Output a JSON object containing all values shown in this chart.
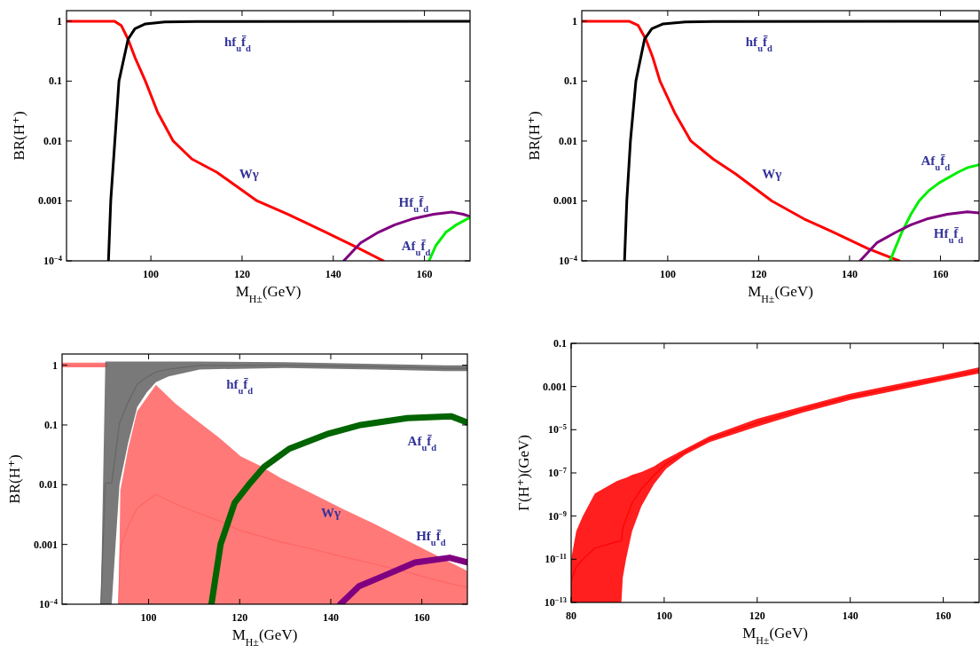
{
  "chart_data": [
    {
      "type": "line",
      "xlabel": "M$_{H±}$(GeV)",
      "ylabel": "BR(H⁺)",
      "log": true,
      "xlim": [
        81.5,
        170
      ],
      "ylim": [
        0.0001,
        1.5
      ],
      "xticks": [
        100,
        120,
        140,
        160
      ],
      "yticks": [
        {
          "value": 0.0001,
          "label": "10$^{−4}$"
        },
        0.001,
        0.01,
        0.1,
        1
      ],
      "series": [
        {
          "name": "Wγ",
          "color": "#ff0000",
          "x": [
            81.5,
            88,
            92,
            93.5,
            95,
            96.5,
            98.8,
            101.5,
            104.9,
            109,
            114.5,
            123.3,
            130,
            138.4,
            145,
            151
          ],
          "values": [
            1,
            1,
            1,
            0.85,
            0.5,
            0.25,
            0.1,
            0.03,
            0.01,
            0.005,
            0.003,
            0.001,
            0.0006,
            0.0003,
            0.00017,
            0.0001
          ]
        },
        {
          "name": "hf$_{u}$f̄$_{d}$",
          "color": "#000000",
          "x": [
            90.7,
            91.2,
            92.1,
            93,
            95,
            96.5,
            98.8,
            103,
            110,
            170
          ],
          "values": [
            0.0001,
            0.001,
            0.01,
            0.1,
            0.5,
            0.75,
            0.9,
            0.97,
            0.99,
            1
          ]
        },
        {
          "name": "Hf$_{u}$f̄$_{d}$",
          "color": "#800080",
          "x": [
            142.3,
            146,
            149.9,
            153.5,
            157.3,
            162,
            166.1,
            168.5,
            170
          ],
          "values": [
            0.0001,
            0.0002,
            0.0003,
            0.0004,
            0.0005,
            0.0006,
            0.00065,
            0.0006,
            0.00055
          ]
        },
        {
          "name": "Af$_{u}$f̄$_{d}$",
          "color": "#00ee00",
          "x": [
            161,
            162.5,
            164.7,
            167,
            170
          ],
          "values": [
            0.0001,
            0.00018,
            0.0003,
            0.0004,
            0.00053
          ]
        }
      ]
    },
    {
      "type": "line",
      "xlabel": "M$_{H±}$(GeV)",
      "ylabel": "BR(H⁺)",
      "log": true,
      "xlim": [
        81.1,
        168.5
      ],
      "ylim": [
        0.0001,
        1.5
      ],
      "xticks": [
        100,
        120,
        140,
        160
      ],
      "yticks": [
        {
          "value": 0.0001,
          "label": "10$^{−4}$"
        },
        0.001,
        0.01,
        0.1,
        1
      ],
      "series": [
        {
          "name": "Wγ",
          "color": "#ff0000",
          "x": [
            81.1,
            88,
            91.5,
            93.5,
            95.2,
            96.7,
            98.3,
            101.5,
            105.1,
            110,
            115,
            122.9,
            130,
            136.5,
            144,
            150.9
          ],
          "values": [
            1,
            1,
            1,
            0.85,
            0.5,
            0.25,
            0.1,
            0.03,
            0.01,
            0.005,
            0.0028,
            0.001,
            0.0005,
            0.0003,
            0.00016,
            0.0001
          ]
        },
        {
          "name": "hf$_{u}$f̄$_{d}$",
          "color": "#000000",
          "x": [
            90.5,
            91,
            91.8,
            93,
            94.9,
            96.5,
            99,
            103.8,
            110,
            168.5
          ],
          "values": [
            0.0001,
            0.001,
            0.01,
            0.1,
            0.5,
            0.75,
            0.9,
            0.97,
            0.99,
            1
          ]
        },
        {
          "name": "Af$_{u}$f̄$_{d}$",
          "color": "#00ee00",
          "x": [
            148.9,
            150,
            151.5,
            153.5,
            155.3,
            157.5,
            159.7,
            163.8,
            166,
            168.5
          ],
          "values": [
            0.0001,
            0.00016,
            0.0003,
            0.0006,
            0.001,
            0.0015,
            0.002,
            0.003,
            0.0036,
            0.004
          ]
        },
        {
          "name": "Hf$_{u}$f̄$_{d}$",
          "color": "#800080",
          "x": [
            142.3,
            146,
            150.2,
            153.5,
            157,
            161.5,
            165.9,
            168.5
          ],
          "values": [
            0.0001,
            0.0002,
            0.0003,
            0.0004,
            0.0005,
            0.0006,
            0.00066,
            0.00063
          ]
        }
      ]
    },
    {
      "type": "line",
      "xlabel": "M$_{H±}$(GeV)",
      "ylabel": "BR(H⁺)",
      "log": true,
      "xlim": [
        81,
        170
      ],
      "ylim": [
        0.0001,
        1.54
      ],
      "xticks": [
        100,
        120,
        140,
        160
      ],
      "yticks": [
        {
          "value": 0.0001,
          "label": "10$^{−4}$"
        },
        0.001,
        0.01,
        0.1,
        1
      ],
      "series": [
        {
          "name": "Wγ",
          "color": "#ff6666",
          "x": [
            81,
            91,
            92,
            93.4,
            93.8,
            95.5,
            97.5,
            101.6,
            105.8,
            109.9,
            115.4,
            120.2,
            124.3,
            129,
            135.9,
            142.7,
            149.6,
            156.4,
            163.3,
            170
          ],
          "values": [
            1,
            1,
            null,
            0.0001,
            0.00089,
            0.002,
            0.0041,
            0.0069,
            0.0048,
            0.0036,
            0.0025,
            0.0017,
            0.0014,
            0.0011,
            0.00084,
            0.00062,
            0.00047,
            0.00035,
            0.00025,
            0.00019
          ],
          "lower": [
            0.92,
            0.92,
            null,
            0.0001,
            0.0001,
            0.0001,
            0.0001,
            0.0001,
            0.0001,
            0.0001,
            0.0001,
            0.0001,
            0.0001,
            0.0001,
            0.0001,
            0.0001,
            0.0001,
            0.0001,
            0.0001,
            0.0001
          ],
          "upper": [
            1.1,
            1.1,
            null,
            0.0001,
            0.008,
            0.04,
            0.17,
            0.47,
            0.23,
            0.13,
            0.062,
            0.03,
            0.021,
            0.013,
            0.0071,
            0.0039,
            0.0022,
            0.0012,
            0.00065,
            0.00036
          ]
        },
        {
          "name": "hf$_{u}$f̄$_{d}$",
          "color": "#666666",
          "x": [
            89.5,
            90.5,
            91.9,
            93.6,
            95.5,
            97.5,
            99.6,
            101.6,
            104.4,
            111.2,
            130,
            150,
            165,
            170
          ],
          "values": [
            0.0001,
            0.0107,
            0.0107,
            0.107,
            0.24,
            0.48,
            0.63,
            0.77,
            0.86,
            0.99,
            1,
            0.94,
            0.89,
            0.89
          ],
          "lower": [
            0.0001,
            0.0001,
            0.0001,
            0.01,
            0.05,
            0.2,
            0.35,
            0.52,
            0.65,
            0.85,
            0.9,
            0.85,
            0.8,
            0.8
          ],
          "upper": [
            0.0001,
            1.15,
            1.15,
            1.15,
            1.15,
            1.15,
            1.15,
            1.15,
            1.15,
            1.15,
            1.12,
            1.05,
            1,
            1
          ]
        },
        {
          "name": "Af$_{u}$f̄$_{d}$",
          "color": "#006400",
          "x": [
            113.8,
            115.8,
            118.9,
            122,
            125.4,
            130.9,
            139.1,
            146.6,
            156.8,
            166.4,
            170
          ],
          "values": [
            0.0001,
            0.001,
            0.005,
            0.01,
            0.02,
            0.04,
            0.07,
            0.1,
            0.13,
            0.14,
            0.11
          ]
        },
        {
          "name": "Hf$_{u}$f̄$_{d}$",
          "color": "#800080",
          "x": [
            142.1,
            146.2,
            151.7,
            158.5,
            166.1,
            170
          ],
          "values": [
            0.0001,
            0.0002,
            0.0003,
            0.0005,
            0.0006,
            0.0005
          ]
        }
      ]
    },
    {
      "type": "line",
      "xlabel": "M$_{H±}$(GeV)",
      "ylabel": "Γ(H⁺)(GeV)",
      "log": true,
      "xlim": [
        80,
        167.7
      ],
      "ylim": [
        1e-13,
        0.1
      ],
      "xticks": [
        80,
        100,
        120,
        140,
        160
      ],
      "yticks": [
        {
          "value": 1e-13,
          "label": "10$^{−13}$"
        },
        {
          "value": 1e-11,
          "label": "10$^{−11}$"
        },
        {
          "value": 1e-09,
          "label": "10$^{−9}$"
        },
        {
          "value": 1e-07,
          "label": "10$^{−7}$"
        },
        {
          "value": 1e-05,
          "label": "10$^{−5}$"
        },
        0.001,
        0.1
      ],
      "series": [
        {
          "color": "#ff0000",
          "x": [
            80,
            81.1,
            82.5,
            85.1,
            89.8,
            90.8,
            91.1,
            91.8,
            93.1,
            95.1,
            97.8,
            100,
            100.5,
            104.5,
            109.8,
            120,
            129.8,
            140,
            149.8,
            160,
            167.7
          ],
          "values": [
            1e-12,
            4.5e-12,
            1e-11,
            3.3e-11,
            6.5e-11,
            7e-11,
            2.7e-10,
            7.7e-10,
            4e-09,
            1.8e-08,
            7.7e-08,
            2.2e-07,
            2.7e-07,
            9.5e-07,
            3.7e-06,
            2.1e-05,
            8.7e-05,
            0.00033,
            0.0009,
            0.0025,
            0.0055
          ],
          "lower": [
            1e-13,
            1e-13,
            1e-13,
            1e-13,
            1e-13,
            1e-13,
            1.4e-12,
            1e-11,
            2e-10,
            2.9e-09,
            3e-08,
            1.2e-07,
            1.6e-07,
            7e-07,
            2.7e-06,
            1.4e-05,
            6.3e-05,
            0.00024,
            0.00065,
            0.0019,
            0.004
          ],
          "upper": [
            1e-11,
            2e-10,
            1e-09,
            1.1e-08,
            4.2e-08,
            5e-08,
            5.3e-08,
            6e-08,
            8e-08,
            1.1e-07,
            2e-07,
            4e-07,
            4.5e-07,
            1.3e-06,
            5.1e-06,
            3.2e-05,
            0.00012,
            0.00046,
            0.00126,
            0.0034,
            0.0077
          ]
        }
      ]
    }
  ]
}
